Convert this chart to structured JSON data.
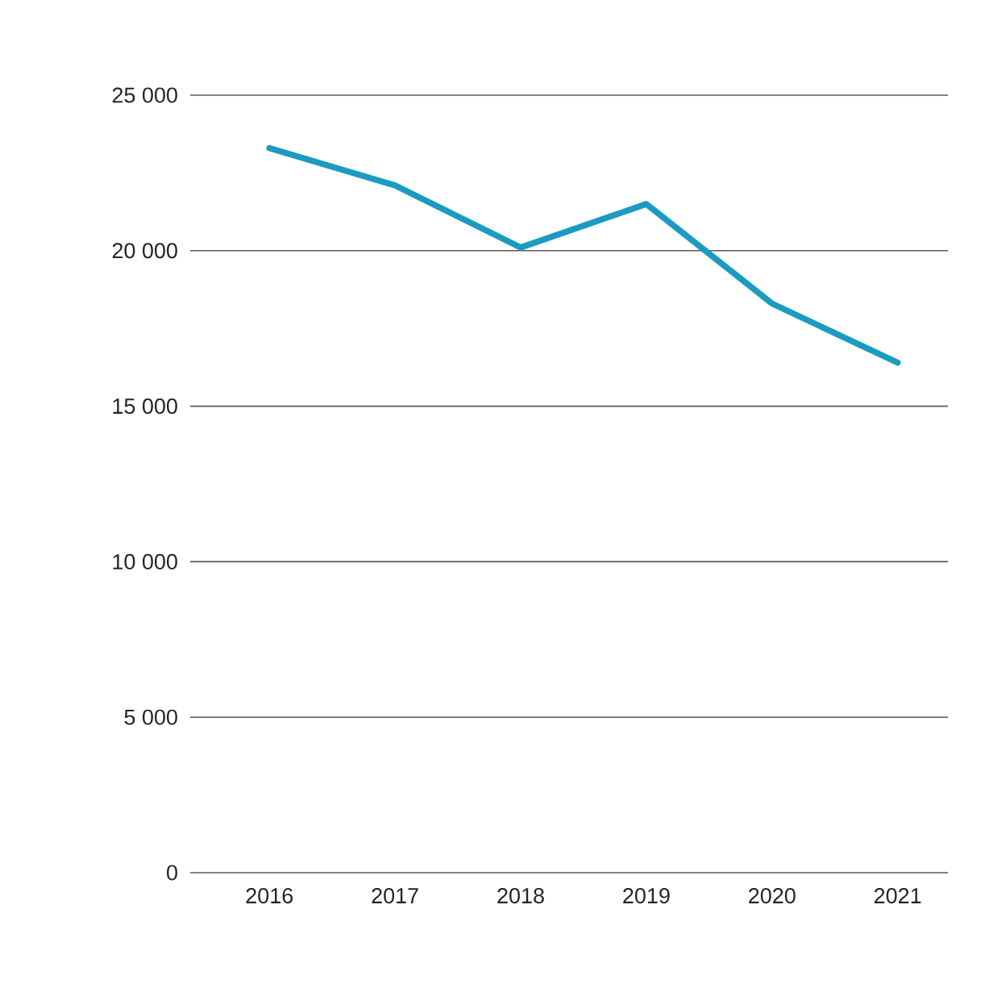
{
  "chart_data": {
    "type": "line",
    "categories": [
      "2016",
      "2017",
      "2018",
      "2019",
      "2020",
      "2021"
    ],
    "series": [
      {
        "color": "#1b9bc0",
        "values": [
          23300,
          22100,
          20100,
          21500,
          18300,
          16400
        ]
      }
    ],
    "ylim": [
      0,
      25000
    ],
    "yticks": [
      {
        "value": 0,
        "label": "0"
      },
      {
        "value": 5000,
        "label": "5 000"
      },
      {
        "value": 10000,
        "label": "10 000"
      },
      {
        "value": 15000,
        "label": "15 000"
      },
      {
        "value": 20000,
        "label": "20 000"
      },
      {
        "value": 25000,
        "label": "25 000"
      }
    ],
    "grid": "y",
    "marker": "none",
    "line_style": "solid"
  }
}
